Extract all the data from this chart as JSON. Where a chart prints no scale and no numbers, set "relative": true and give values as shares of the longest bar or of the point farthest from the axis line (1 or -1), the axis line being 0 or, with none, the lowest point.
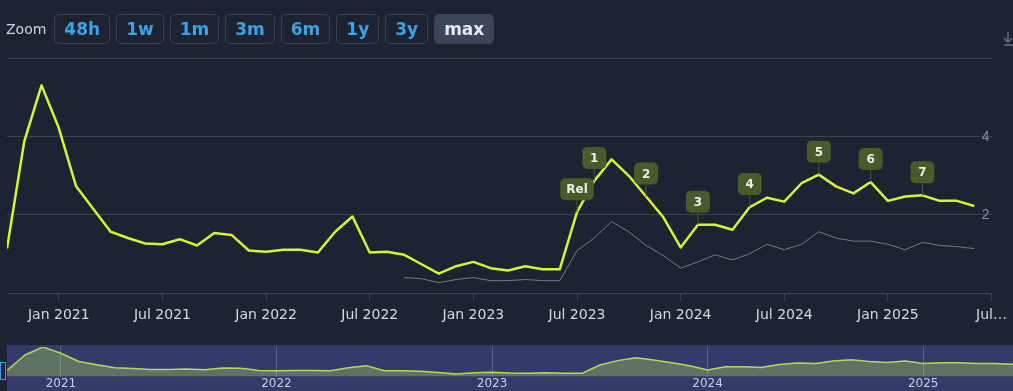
{
  "chart_data": [
    {
      "type": "line",
      "annotations": [
        "Zoom",
        "48h",
        "1w",
        "1m",
        "3m",
        "6m",
        "1y",
        "3y",
        "max",
        {
          "text": "Rel",
          "x": "2023-07",
          "y": 2.07
        },
        {
          "text": "1",
          "x": "2023-08",
          "y": 2.87
        },
        {
          "text": "2",
          "x": "2023-11",
          "y": 2.47
        },
        {
          "text": "3",
          "x": "2024-02",
          "y": 1.75
        },
        {
          "text": "4",
          "x": "2024-05",
          "y": 2.2
        },
        {
          "text": "5",
          "x": "2024-09",
          "y": 3.03
        },
        {
          "text": "6",
          "x": "2024-12",
          "y": 2.84
        },
        {
          "text": "7",
          "x": "2025-03",
          "y": 2.5
        }
      ],
      "x": [
        "2020-10",
        "2020-11",
        "2020-12",
        "2021-01",
        "2021-02",
        "2021-03",
        "2021-04",
        "2021-05",
        "2021-06",
        "2021-07",
        "2021-08",
        "2021-09",
        "2021-10",
        "2021-11",
        "2021-12",
        "2022-01",
        "2022-02",
        "2022-03",
        "2022-04",
        "2022-05",
        "2022-06",
        "2022-07",
        "2022-08",
        "2022-09",
        "2022-10",
        "2022-11",
        "2022-12",
        "2023-01",
        "2023-02",
        "2023-03",
        "2023-04",
        "2023-05",
        "2023-06",
        "2023-07",
        "2023-08",
        "2023-09",
        "2023-10",
        "2023-11",
        "2023-12",
        "2024-01",
        "2024-02",
        "2024-03",
        "2024-04",
        "2024-05",
        "2024-06",
        "2024-07",
        "2024-08",
        "2024-09",
        "2024-10",
        "2024-11",
        "2024-12",
        "2025-01",
        "2025-02",
        "2025-03",
        "2025-04",
        "2025-05",
        "2025-06"
      ],
      "series": [
        {
          "color": "#d4f53a",
          "values": [
            1.14,
            3.88,
            5.31,
            4.22,
            2.73,
            2.15,
            1.57,
            1.41,
            1.27,
            1.25,
            1.38,
            1.22,
            1.54,
            1.49,
            1.09,
            1.06,
            1.11,
            1.11,
            1.04,
            1.57,
            1.96,
            1.04,
            1.06,
            0.98,
            0.74,
            0.5,
            0.69,
            0.8,
            0.64,
            0.58,
            0.69,
            0.61,
            0.61,
            2.07,
            2.87,
            3.42,
            3.0,
            2.47,
            1.94,
            1.17,
            1.75,
            1.75,
            1.62,
            2.2,
            2.44,
            2.34,
            2.81,
            3.03,
            2.73,
            2.55,
            2.84,
            2.36,
            2.47,
            2.5,
            2.36,
            2.36,
            2.23
          ]
        },
        {
          "color": "#777c86",
          "x": [
            "2022-09",
            "2022-10",
            "2022-11",
            "2022-12",
            "2023-01",
            "2023-02",
            "2023-03",
            "2023-04",
            "2023-05",
            "2023-06",
            "2023-07",
            "2023-08",
            "2023-09",
            "2023-10",
            "2023-11",
            "2023-12",
            "2024-01",
            "2024-02",
            "2024-03",
            "2024-04",
            "2024-05",
            "2024-06",
            "2024-07",
            "2024-08",
            "2024-09",
            "2024-10",
            "2024-11",
            "2024-12",
            "2025-01",
            "2025-02",
            "2025-03",
            "2025-04",
            "2025-05",
            "2025-06"
          ],
          "values": [
            0.4,
            0.37,
            0.27,
            0.35,
            0.4,
            0.32,
            0.32,
            0.35,
            0.32,
            0.32,
            1.09,
            1.41,
            1.83,
            1.57,
            1.22,
            0.96,
            0.64,
            0.8,
            0.98,
            0.85,
            1.01,
            1.25,
            1.11,
            1.25,
            1.57,
            1.41,
            1.33,
            1.33,
            1.25,
            1.11,
            1.3,
            1.22,
            1.19,
            1.14
          ]
        }
      ],
      "xlim": [
        "2020-10",
        "2025-07"
      ],
      "xticks": [
        {
          "value": "2021-01",
          "label": "Jan 2021"
        },
        {
          "value": "2021-07",
          "label": "Jul 2021"
        },
        {
          "value": "2022-01",
          "label": "Jan 2022"
        },
        {
          "value": "2022-07",
          "label": "Jul 2022"
        },
        {
          "value": "2023-01",
          "label": "Jan 2023"
        },
        {
          "value": "2023-07",
          "label": "Jul 2023"
        },
        {
          "value": "2024-01",
          "label": "Jan 2024"
        },
        {
          "value": "2024-07",
          "label": "Jul 2024"
        },
        {
          "value": "2025-01",
          "label": "Jan 2025"
        },
        {
          "value": "2025-07",
          "label": "Jul…"
        }
      ],
      "ylim": [
        0,
        6
      ],
      "yticks": [
        {
          "value": 0,
          "label": null
        },
        2,
        4,
        {
          "value": 6,
          "label": null
        }
      ],
      "grid": "y",
      "legend": false,
      "marker": "none"
    },
    {
      "type": "area",
      "relative": true,
      "color": "#b5d95a",
      "x": [
        "2020-10",
        "2020-11",
        "2020-12",
        "2021-01",
        "2021-02",
        "2021-03",
        "2021-04",
        "2021-05",
        "2021-06",
        "2021-07",
        "2021-08",
        "2021-09",
        "2021-10",
        "2021-11",
        "2021-12",
        "2022-01",
        "2022-02",
        "2022-03",
        "2022-04",
        "2022-05",
        "2022-06",
        "2022-07",
        "2022-08",
        "2022-09",
        "2022-10",
        "2022-11",
        "2022-12",
        "2023-01",
        "2023-02",
        "2023-03",
        "2023-04",
        "2023-05",
        "2023-06",
        "2023-07",
        "2023-08",
        "2023-09",
        "2023-10",
        "2023-11",
        "2023-12",
        "2024-01",
        "2024-02",
        "2024-03",
        "2024-04",
        "2024-05",
        "2024-06",
        "2024-07",
        "2024-08",
        "2024-09",
        "2024-10",
        "2024-11",
        "2024-12",
        "2025-01",
        "2025-02",
        "2025-03",
        "2025-04",
        "2025-05",
        "2025-06"
      ],
      "values": [
        0.21,
        0.73,
        1,
        0.79,
        0.51,
        0.4,
        0.3,
        0.27,
        0.24,
        0.24,
        0.26,
        0.23,
        0.29,
        0.28,
        0.21,
        0.2,
        0.21,
        0.21,
        0.2,
        0.3,
        0.37,
        0.2,
        0.2,
        0.18,
        0.14,
        0.09,
        0.13,
        0.15,
        0.12,
        0.11,
        0.13,
        0.11,
        0.11,
        0.39,
        0.54,
        0.64,
        0.56,
        0.47,
        0.37,
        0.22,
        0.33,
        0.33,
        0.31,
        0.41,
        0.46,
        0.44,
        0.53,
        0.57,
        0.51,
        0.48,
        0.53,
        0.44,
        0.47,
        0.47,
        0.44,
        0.44,
        0.42
      ],
      "xlim": [
        "2020-10",
        "2025-06"
      ],
      "xticks": [
        {
          "value": "2021-01",
          "label": "2021"
        },
        {
          "value": "2022-01",
          "label": "2022"
        },
        {
          "value": "2023-01",
          "label": "2023"
        },
        {
          "value": "2024-01",
          "label": "2024"
        },
        {
          "value": "2025-01",
          "label": "2025"
        }
      ],
      "grid": "x",
      "tick_labels": "x",
      "legend": false,
      "marker": "none"
    }
  ]
}
